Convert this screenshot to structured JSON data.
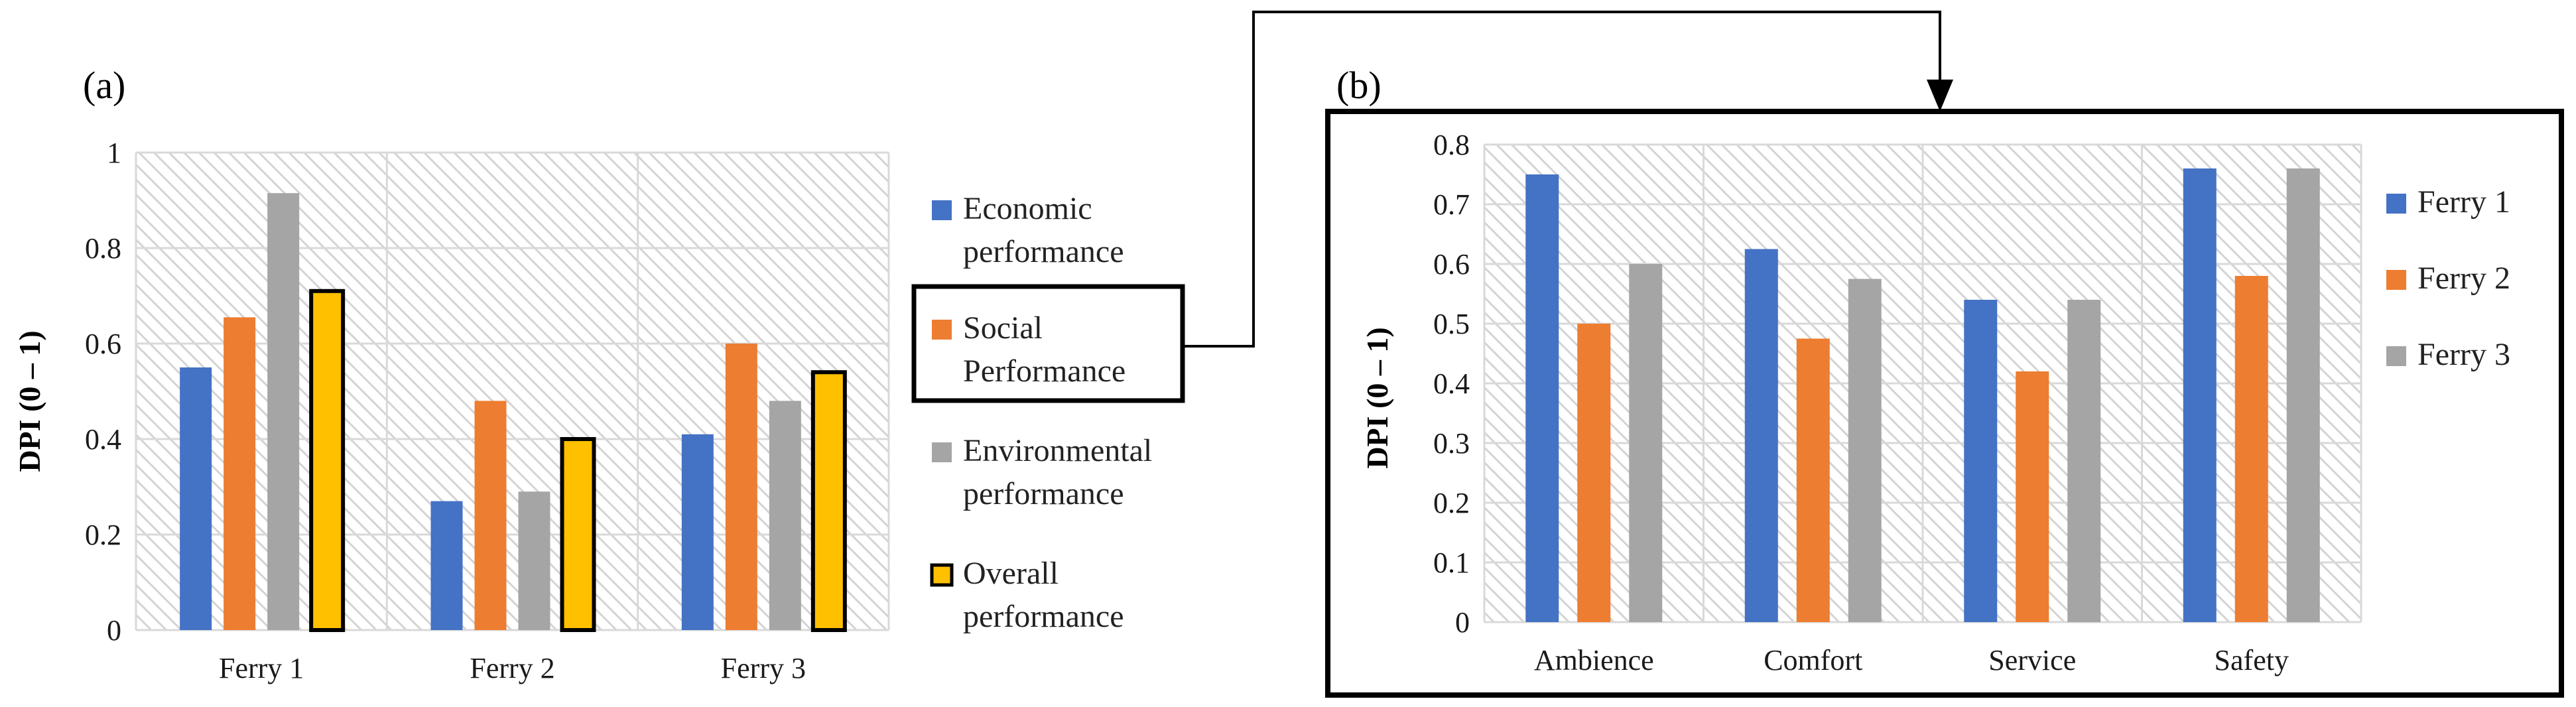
{
  "chart_data": [
    {
      "type": "bar",
      "panel_label": "(a)",
      "ylabel": "DPI (0 – 1)",
      "ylim": [
        0,
        1
      ],
      "yticks": [
        "0",
        "0.2",
        "0.4",
        "0.6",
        "0.8",
        "1"
      ],
      "ytick_values": [
        0,
        0.2,
        0.4,
        0.6,
        0.8,
        1
      ],
      "categories": [
        "Ferry 1",
        "Ferry 2",
        "Ferry 3"
      ],
      "series": [
        {
          "name": "Economic performance",
          "legend_lines": [
            "Economic",
            "performance"
          ],
          "color": "#4472C4",
          "outlined": false,
          "values": [
            0.55,
            0.27,
            0.41
          ]
        },
        {
          "name": "Social Performance",
          "legend_lines": [
            "Social",
            "Performance"
          ],
          "color": "#ED7D31",
          "outlined": false,
          "values": [
            0.655,
            0.48,
            0.6
          ]
        },
        {
          "name": "Environmental performance",
          "legend_lines": [
            "Environmental",
            "performance"
          ],
          "color": "#A5A5A5",
          "outlined": false,
          "values": [
            0.915,
            0.29,
            0.48
          ]
        },
        {
          "name": "Overall performance",
          "legend_lines": [
            "Overall",
            "performance"
          ],
          "color": "#FFC000",
          "outlined": true,
          "values": [
            0.71,
            0.4,
            0.54
          ]
        }
      ],
      "legend_highlighted": "Social Performance"
    },
    {
      "type": "bar",
      "panel_label": "(b)",
      "ylabel": "DPI (0 – 1)",
      "ylim": [
        0,
        0.8
      ],
      "yticks": [
        "0",
        "0.1",
        "0.2",
        "0.3",
        "0.4",
        "0.5",
        "0.6",
        "0.7",
        "0.8"
      ],
      "ytick_values": [
        0,
        0.1,
        0.2,
        0.3,
        0.4,
        0.5,
        0.6,
        0.7,
        0.8
      ],
      "categories": [
        "Ambience",
        "Comfort",
        "Service",
        "Safety"
      ],
      "series": [
        {
          "name": "Ferry 1",
          "color": "#4472C4",
          "values": [
            0.75,
            0.625,
            0.54,
            0.76
          ]
        },
        {
          "name": "Ferry 2",
          "color": "#ED7D31",
          "values": [
            0.5,
            0.475,
            0.42,
            0.58
          ]
        },
        {
          "name": "Ferry 3",
          "color": "#A5A5A5",
          "values": [
            0.6,
            0.575,
            0.54,
            0.76
          ]
        }
      ]
    }
  ]
}
